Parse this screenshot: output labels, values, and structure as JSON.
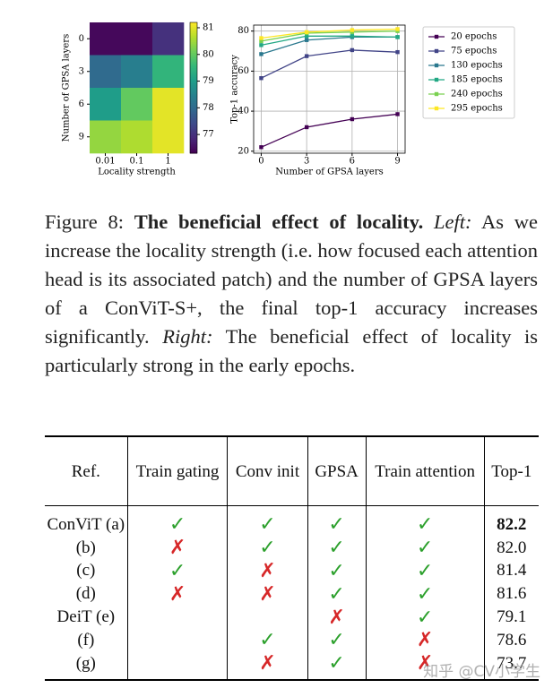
{
  "chart_data": [
    {
      "type": "heatmap",
      "xlabel": "Locality strength",
      "ylabel": "Number of GPSA layers",
      "x_categories": [
        "0.01",
        "0.1",
        "1"
      ],
      "y_categories": [
        "0",
        "3",
        "6",
        "9"
      ],
      "values": [
        [
          76.4,
          76.4,
          77.0
        ],
        [
          78.0,
          78.4,
          79.5
        ],
        [
          79.0,
          80.0,
          81.0
        ],
        [
          80.4,
          80.6,
          81.0
        ]
      ],
      "colormap": "viridis",
      "clim": [
        76.3,
        81.2
      ],
      "cticks": [
        77,
        78,
        79,
        80,
        81
      ]
    },
    {
      "type": "line",
      "xlabel": "Number of GPSA layers",
      "ylabel": "Top-1 accuracy",
      "x": [
        0,
        3,
        6,
        9
      ],
      "xlim": [
        -0.5,
        9.5
      ],
      "xticks": [
        0,
        3,
        6,
        9
      ],
      "ylim": [
        19,
        83
      ],
      "yticks": [
        20,
        40,
        60,
        80
      ],
      "grid": true,
      "legend": "outside right",
      "series": [
        {
          "name": "20 epochs",
          "color": "#440154",
          "values": [
            22,
            32,
            36,
            38.5
          ]
        },
        {
          "name": "75 epochs",
          "color": "#414487",
          "values": [
            56.5,
            67.5,
            70.5,
            69.5
          ]
        },
        {
          "name": "130 epochs",
          "color": "#2a788e",
          "values": [
            68.5,
            75.5,
            77,
            77
          ]
        },
        {
          "name": "185 epochs",
          "color": "#22a884",
          "values": [
            73,
            77.5,
            77.5,
            77
          ]
        },
        {
          "name": "240 epochs",
          "color": "#7ad151",
          "values": [
            75,
            79,
            79.5,
            80
          ]
        },
        {
          "name": "295 epochs",
          "color": "#fde725",
          "values": [
            76.5,
            79.5,
            80.5,
            81
          ]
        }
      ]
    }
  ],
  "caption": {
    "label": "Figure 8:",
    "title": "The beneficial effect of locality.",
    "left_label": "Left:",
    "left_text": "As we increase the locality strength (i.e. how focused each attention head is its associated patch) and the number of GPSA layers of a ConViT-S+, the final top-1 accuracy increases significantly.",
    "right_label": "Right:",
    "right_text": "The beneficial effect of locality is particularly strong in the early epochs."
  },
  "table": {
    "headers": [
      "Ref.",
      "Train gating",
      "Conv init",
      "GPSA",
      "Train attention",
      "Top-1"
    ],
    "rows": [
      [
        "ConViT (a)",
        {
          "text": "✓",
          "color": "#2ca02c"
        },
        {
          "text": "✓",
          "color": "#2ca02c"
        },
        {
          "text": "✓",
          "color": "#2ca02c"
        },
        {
          "text": "✓",
          "color": "#2ca02c"
        },
        "82.2"
      ],
      [
        "(b)",
        {
          "text": "✗",
          "color": "#d62728"
        },
        {
          "text": "✓",
          "color": "#2ca02c"
        },
        {
          "text": "✓",
          "color": "#2ca02c"
        },
        {
          "text": "✓",
          "color": "#2ca02c"
        },
        "82.0"
      ],
      [
        "(c)",
        {
          "text": "✓",
          "color": "#2ca02c"
        },
        {
          "text": "✗",
          "color": "#d62728"
        },
        {
          "text": "✓",
          "color": "#2ca02c"
        },
        {
          "text": "✓",
          "color": "#2ca02c"
        },
        "81.4"
      ],
      [
        "(d)",
        {
          "text": "✗",
          "color": "#d62728"
        },
        {
          "text": "✗",
          "color": "#d62728"
        },
        {
          "text": "✓",
          "color": "#2ca02c"
        },
        {
          "text": "✓",
          "color": "#2ca02c"
        },
        "81.6"
      ],
      [
        "DeiT (e)",
        null,
        null,
        {
          "text": "✗",
          "color": "#d62728"
        },
        {
          "text": "✓",
          "color": "#2ca02c"
        },
        "79.1"
      ],
      [
        "(f)",
        null,
        {
          "text": "✓",
          "color": "#2ca02c"
        },
        {
          "text": "✓",
          "color": "#2ca02c"
        },
        {
          "text": "✗",
          "color": "#d62728"
        },
        "78.6"
      ],
      [
        "(g)",
        null,
        {
          "text": "✗",
          "color": "#d62728"
        },
        {
          "text": "✓",
          "color": "#2ca02c"
        },
        {
          "text": "✗",
          "color": "#d62728"
        },
        "73.7"
      ]
    ]
  },
  "watermark": "知乎 @CV小学生"
}
